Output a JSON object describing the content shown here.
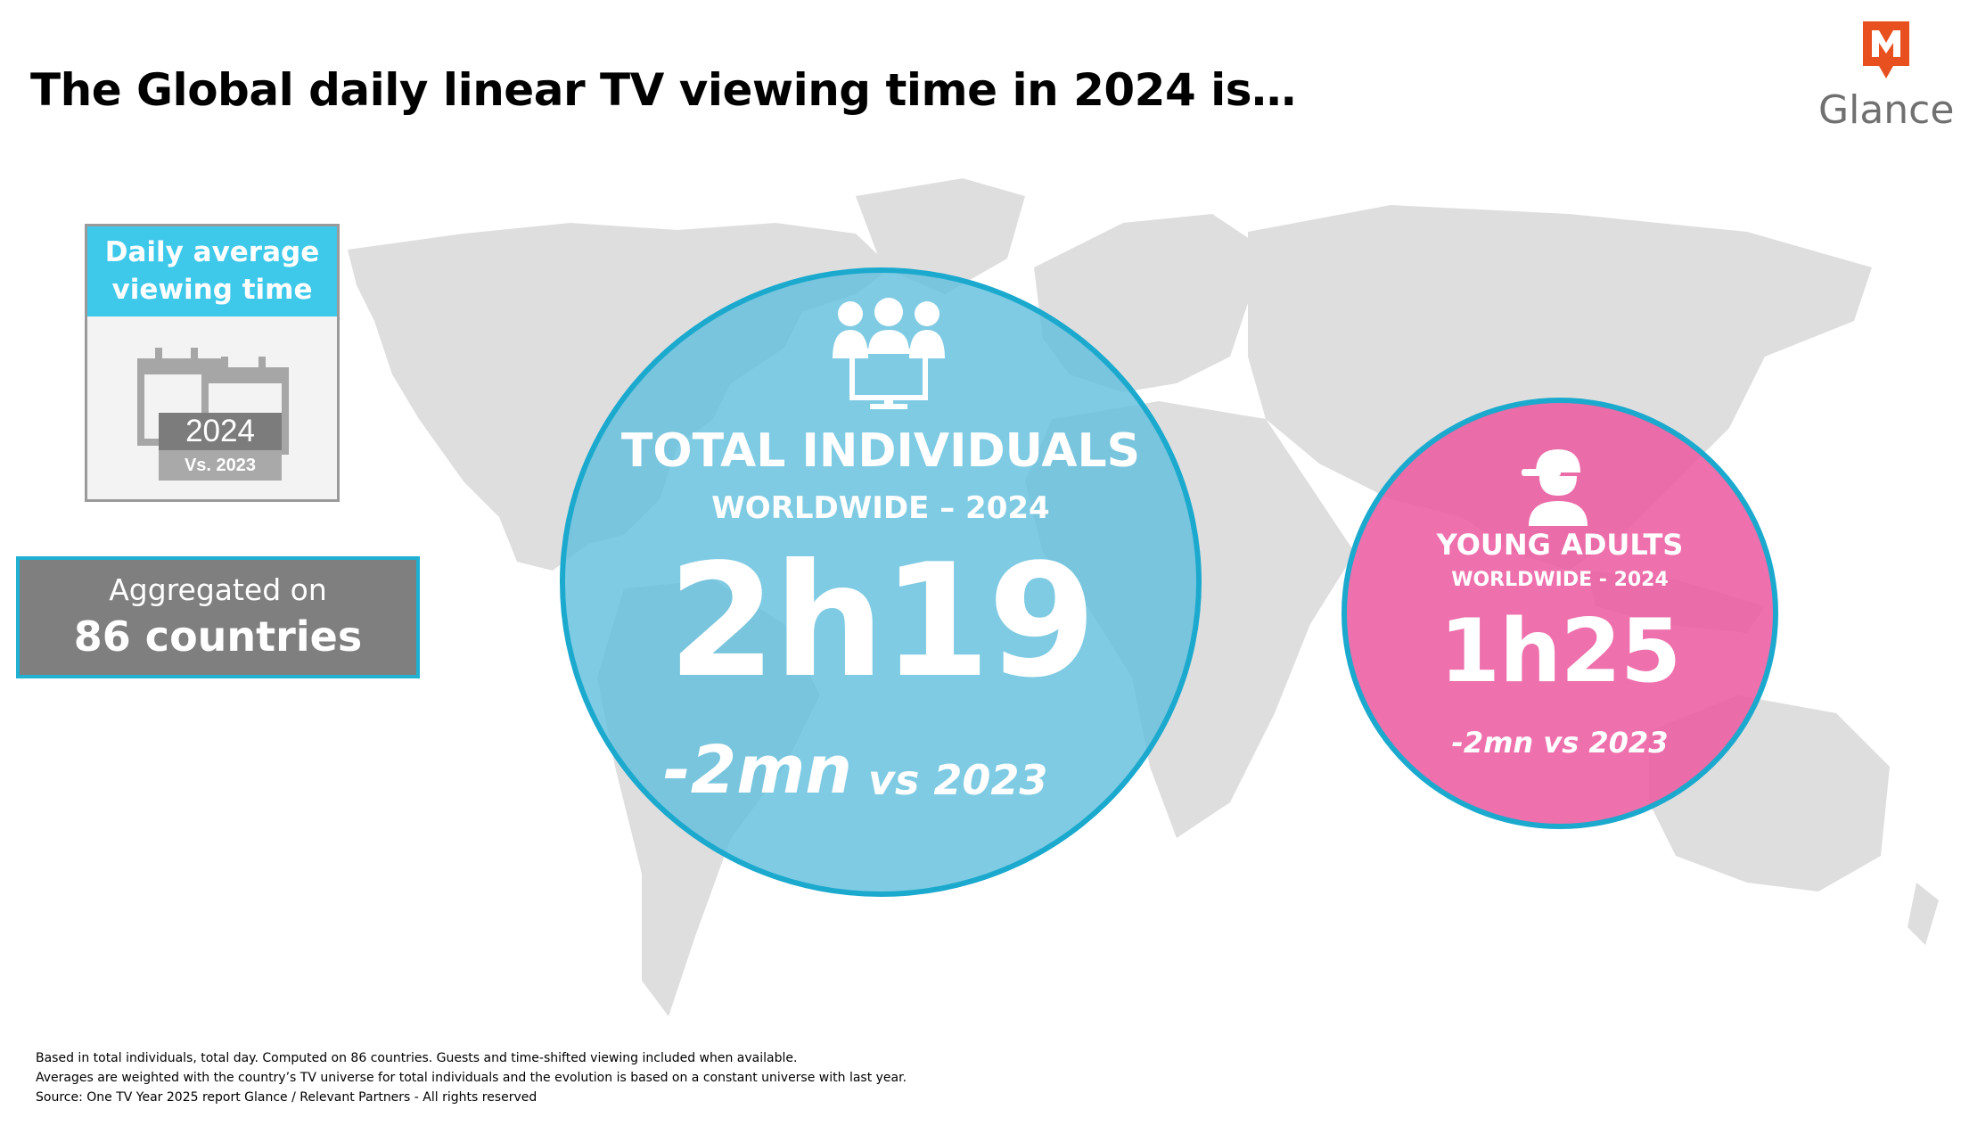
{
  "title": "The Global daily linear TV viewing time in 2024 is…",
  "logo": {
    "text": "Glance",
    "mark_letter": "M",
    "color": "#e8501f"
  },
  "card": {
    "heading": [
      "Daily average",
      "viewing time"
    ],
    "icon": "calendar-icon",
    "year": "2024",
    "vs": "Vs. 2023"
  },
  "aggregate": {
    "line1": "Aggregated on",
    "line2": "86 countries"
  },
  "total": {
    "icon": "audience-tv-icon",
    "label": "TOTAL INDIVIDUALS",
    "sub": "WORLDWIDE – 2024",
    "value": "2h19",
    "diff": "-2mn",
    "diff_vs": "vs 2023",
    "color": "#63c0dd"
  },
  "young": {
    "icon": "cap-person-icon",
    "label": "YOUNG ADULTS",
    "sub": "WORLDWIDE - 2024",
    "value": "1h25",
    "diff": "-2mn vs 2023",
    "color": "#ec5ca0"
  },
  "footnotes": [
    "Based in total individuals, total day. Computed on 86 countries. Guests and time-shifted viewing included when available.",
    "Averages are weighted with the country’s TV universe for total individuals and the evolution is based on a constant universe with last year.",
    "Source: One TV Year 2025 report Glance / Relevant Partners - All rights reserved"
  ]
}
